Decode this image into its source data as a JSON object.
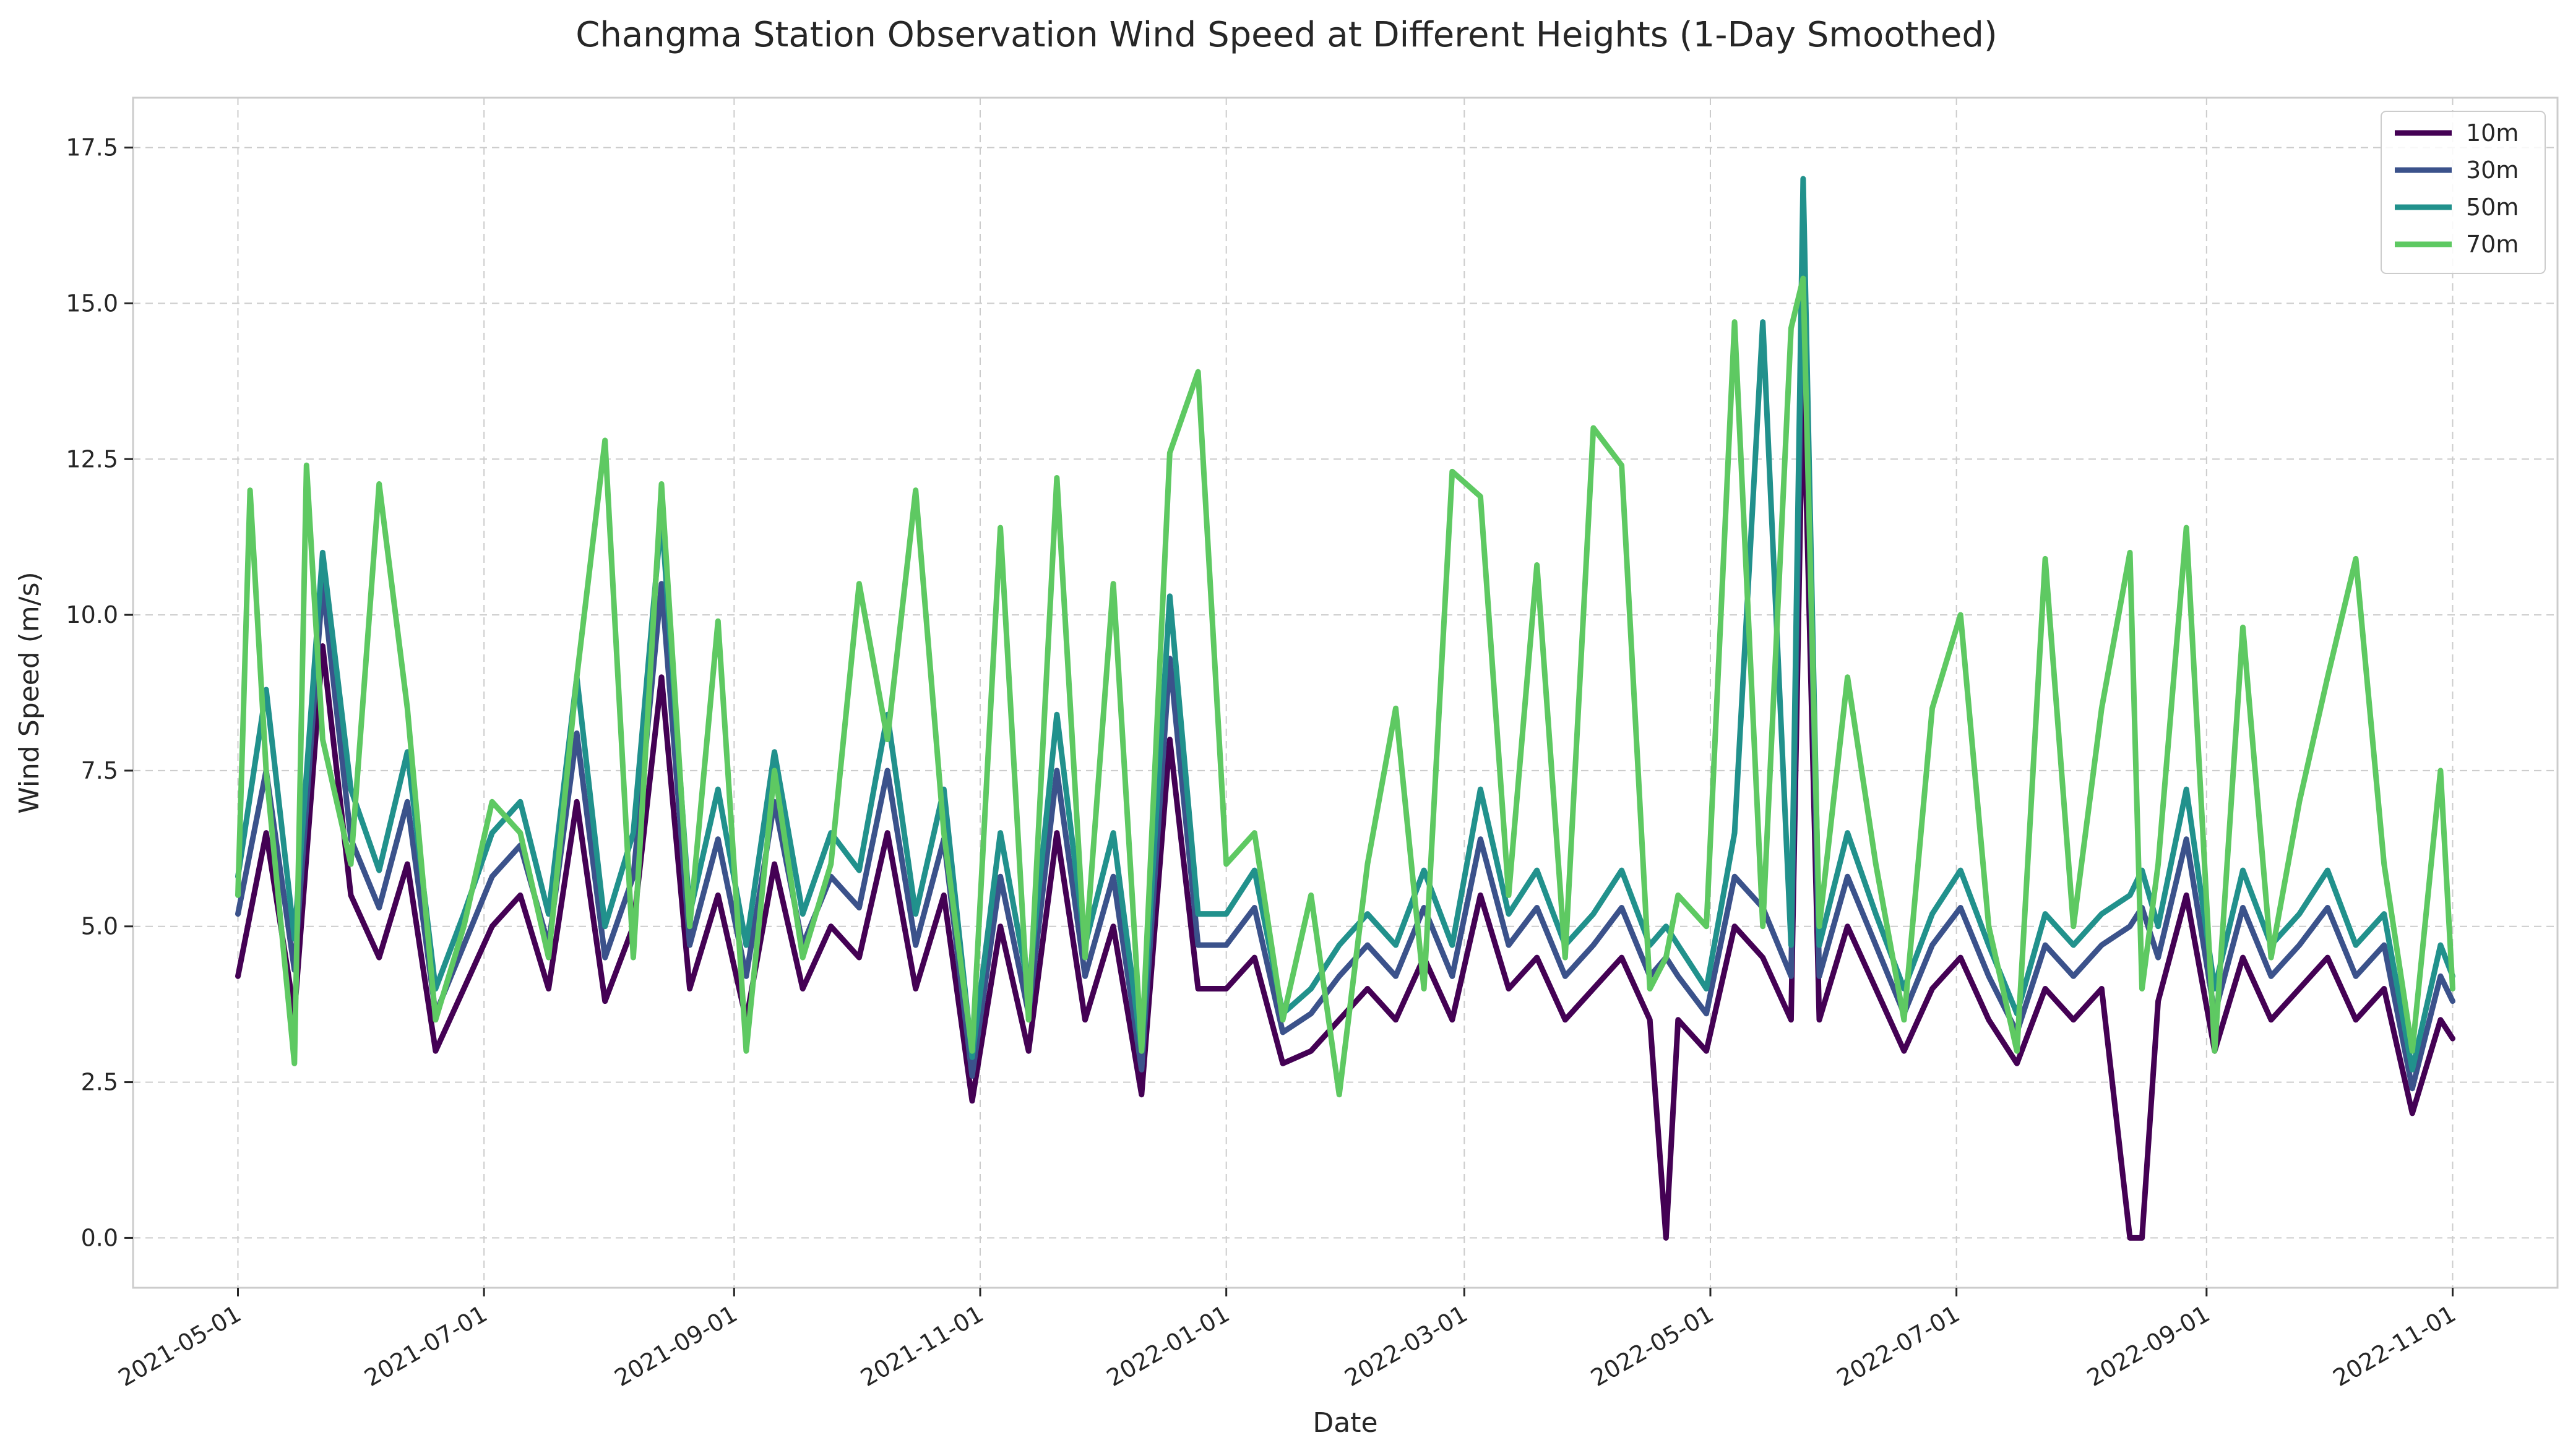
{
  "chart_data": {
    "type": "line",
    "title": "Changma Station Observation Wind Speed at Different Heights (1-Day Smoothed)",
    "xlabel": "Date",
    "ylabel": "Wind Speed (m/s)",
    "xlim": [
      "2021-04-05",
      "2022-11-27"
    ],
    "ylim": [
      -0.8,
      18.3
    ],
    "yticks": [
      0.0,
      2.5,
      5.0,
      7.5,
      10.0,
      12.5,
      15.0,
      17.5
    ],
    "ytick_labels": [
      "0.0",
      "2.5",
      "5.0",
      "7.5",
      "10.0",
      "12.5",
      "15.0",
      "17.5"
    ],
    "xticks": [
      "2021-05-01",
      "2021-07-01",
      "2021-09-01",
      "2021-11-01",
      "2022-01-01",
      "2022-03-01",
      "2022-05-01",
      "2022-07-01",
      "2022-09-01",
      "2022-11-01"
    ],
    "grid": true,
    "legend_position": "top-right",
    "series": [
      {
        "name": "10m",
        "color": "#440154",
        "x": [
          "2021-05-01",
          "2021-05-08",
          "2021-05-15",
          "2021-05-22",
          "2021-05-29",
          "2021-06-05",
          "2021-06-12",
          "2021-06-19",
          "2021-06-26",
          "2021-07-03",
          "2021-07-10",
          "2021-07-17",
          "2021-07-24",
          "2021-07-31",
          "2021-08-07",
          "2021-08-14",
          "2021-08-21",
          "2021-08-28",
          "2021-09-04",
          "2021-09-11",
          "2021-09-18",
          "2021-09-25",
          "2021-10-02",
          "2021-10-09",
          "2021-10-16",
          "2021-10-23",
          "2021-10-30",
          "2021-11-06",
          "2021-11-13",
          "2021-11-20",
          "2021-11-27",
          "2021-12-04",
          "2021-12-11",
          "2021-12-18",
          "2021-12-25",
          "2022-01-01",
          "2022-01-08",
          "2022-01-15",
          "2022-01-22",
          "2022-01-29",
          "2022-02-05",
          "2022-02-12",
          "2022-02-19",
          "2022-02-26",
          "2022-03-05",
          "2022-03-12",
          "2022-03-19",
          "2022-03-26",
          "2022-04-02",
          "2022-04-09",
          "2022-04-16",
          "2022-04-20",
          "2022-04-23",
          "2022-04-30",
          "2022-05-07",
          "2022-05-14",
          "2022-05-21",
          "2022-05-24",
          "2022-05-28",
          "2022-06-04",
          "2022-06-11",
          "2022-06-18",
          "2022-06-25",
          "2022-07-02",
          "2022-07-09",
          "2022-07-16",
          "2022-07-23",
          "2022-07-30",
          "2022-08-06",
          "2022-08-13",
          "2022-08-16",
          "2022-08-20",
          "2022-08-27",
          "2022-09-03",
          "2022-09-10",
          "2022-09-17",
          "2022-09-24",
          "2022-10-01",
          "2022-10-08",
          "2022-10-15",
          "2022-10-22",
          "2022-10-29",
          "2022-11-01"
        ],
        "values": [
          4.2,
          6.5,
          3.6,
          9.5,
          5.5,
          4.5,
          6.0,
          3.0,
          4.0,
          5.0,
          5.5,
          4.0,
          7.0,
          3.8,
          5.0,
          9.0,
          4.0,
          5.5,
          3.5,
          6.0,
          4.0,
          5.0,
          4.5,
          6.5,
          4.0,
          5.5,
          2.2,
          5.0,
          3.0,
          6.5,
          3.5,
          5.0,
          2.3,
          8.0,
          4.0,
          4.0,
          4.5,
          2.8,
          3.0,
          3.5,
          4.0,
          3.5,
          4.5,
          3.5,
          5.5,
          4.0,
          4.5,
          3.5,
          4.0,
          4.5,
          3.5,
          0.0,
          3.5,
          3.0,
          5.0,
          4.5,
          3.5,
          14.0,
          3.5,
          5.0,
          4.0,
          3.0,
          4.0,
          4.5,
          3.5,
          2.8,
          4.0,
          3.5,
          4.0,
          0.0,
          0.0,
          3.8,
          5.5,
          3.0,
          4.5,
          3.5,
          4.0,
          4.5,
          3.5,
          4.0,
          2.0,
          3.5,
          3.2
        ]
      },
      {
        "name": "30m",
        "color": "#3b528b",
        "x": [
          "2021-05-01",
          "2021-05-08",
          "2021-05-15",
          "2021-05-22",
          "2021-05-29",
          "2021-06-05",
          "2021-06-12",
          "2021-06-19",
          "2021-06-26",
          "2021-07-03",
          "2021-07-10",
          "2021-07-17",
          "2021-07-24",
          "2021-07-31",
          "2021-08-07",
          "2021-08-14",
          "2021-08-21",
          "2021-08-28",
          "2021-09-04",
          "2021-09-11",
          "2021-09-18",
          "2021-09-25",
          "2021-10-02",
          "2021-10-09",
          "2021-10-16",
          "2021-10-23",
          "2021-10-30",
          "2021-11-06",
          "2021-11-13",
          "2021-11-20",
          "2021-11-27",
          "2021-12-04",
          "2021-12-11",
          "2021-12-18",
          "2021-12-25",
          "2022-01-01",
          "2022-01-08",
          "2022-01-15",
          "2022-01-22",
          "2022-01-29",
          "2022-02-05",
          "2022-02-12",
          "2022-02-19",
          "2022-02-26",
          "2022-03-05",
          "2022-03-12",
          "2022-03-19",
          "2022-03-26",
          "2022-04-02",
          "2022-04-09",
          "2022-04-16",
          "2022-04-20",
          "2022-04-23",
          "2022-04-30",
          "2022-05-07",
          "2022-05-14",
          "2022-05-21",
          "2022-05-24",
          "2022-05-28",
          "2022-06-04",
          "2022-06-11",
          "2022-06-18",
          "2022-06-25",
          "2022-07-02",
          "2022-07-09",
          "2022-07-16",
          "2022-07-23",
          "2022-07-30",
          "2022-08-06",
          "2022-08-13",
          "2022-08-16",
          "2022-08-20",
          "2022-08-27",
          "2022-09-03",
          "2022-09-10",
          "2022-09-17",
          "2022-09-24",
          "2022-10-01",
          "2022-10-08",
          "2022-10-15",
          "2022-10-22",
          "2022-10-29",
          "2022-11-01"
        ],
        "values": [
          5.2,
          7.5,
          4.3,
          10.5,
          6.4,
          5.3,
          7.0,
          3.6,
          4.7,
          5.8,
          6.3,
          4.7,
          8.1,
          4.5,
          5.8,
          10.5,
          4.7,
          6.4,
          4.2,
          7.0,
          4.7,
          5.8,
          5.3,
          7.5,
          4.7,
          6.4,
          2.6,
          5.8,
          3.6,
          7.5,
          4.2,
          5.8,
          2.7,
          9.3,
          4.7,
          4.7,
          5.3,
          3.3,
          3.6,
          4.2,
          4.7,
          4.2,
          5.3,
          4.2,
          6.4,
          4.7,
          5.3,
          4.2,
          4.7,
          5.3,
          4.2,
          4.5,
          4.2,
          3.6,
          5.8,
          5.3,
          4.2,
          16.0,
          4.2,
          5.8,
          4.7,
          3.6,
          4.7,
          5.3,
          4.2,
          3.3,
          4.7,
          4.2,
          4.7,
          5.0,
          5.3,
          4.5,
          6.4,
          3.6,
          5.3,
          4.2,
          4.7,
          5.3,
          4.2,
          4.7,
          2.4,
          4.2,
          3.8
        ]
      },
      {
        "name": "50m",
        "color": "#21918c",
        "x": [
          "2021-05-01",
          "2021-05-08",
          "2021-05-15",
          "2021-05-22",
          "2021-05-29",
          "2021-06-05",
          "2021-06-12",
          "2021-06-19",
          "2021-06-26",
          "2021-07-03",
          "2021-07-10",
          "2021-07-17",
          "2021-07-24",
          "2021-07-31",
          "2021-08-07",
          "2021-08-14",
          "2021-08-21",
          "2021-08-28",
          "2021-09-04",
          "2021-09-11",
          "2021-09-18",
          "2021-09-25",
          "2021-10-02",
          "2021-10-09",
          "2021-10-16",
          "2021-10-23",
          "2021-10-30",
          "2021-11-06",
          "2021-11-13",
          "2021-11-20",
          "2021-11-27",
          "2021-12-04",
          "2021-12-11",
          "2021-12-18",
          "2021-12-25",
          "2022-01-01",
          "2022-01-08",
          "2022-01-15",
          "2022-01-22",
          "2022-01-29",
          "2022-02-05",
          "2022-02-12",
          "2022-02-19",
          "2022-02-26",
          "2022-03-05",
          "2022-03-12",
          "2022-03-19",
          "2022-03-26",
          "2022-04-02",
          "2022-04-09",
          "2022-04-16",
          "2022-04-20",
          "2022-04-23",
          "2022-04-30",
          "2022-05-07",
          "2022-05-14",
          "2022-05-21",
          "2022-05-24",
          "2022-05-28",
          "2022-06-04",
          "2022-06-11",
          "2022-06-18",
          "2022-06-25",
          "2022-07-02",
          "2022-07-09",
          "2022-07-16",
          "2022-07-23",
          "2022-07-30",
          "2022-08-06",
          "2022-08-13",
          "2022-08-16",
          "2022-08-20",
          "2022-08-27",
          "2022-09-03",
          "2022-09-10",
          "2022-09-17",
          "2022-09-24",
          "2022-10-01",
          "2022-10-08",
          "2022-10-15",
          "2022-10-22",
          "2022-10-29",
          "2022-11-01"
        ],
        "values": [
          5.8,
          8.8,
          4.8,
          11.0,
          7.2,
          5.9,
          7.8,
          4.0,
          5.2,
          6.5,
          7.0,
          5.2,
          9.0,
          5.0,
          6.5,
          11.6,
          5.2,
          7.2,
          4.7,
          7.8,
          5.2,
          6.5,
          5.9,
          8.4,
          5.2,
          7.2,
          2.9,
          6.5,
          4.0,
          8.4,
          4.7,
          6.5,
          3.0,
          10.3,
          5.2,
          5.2,
          5.9,
          3.6,
          4.0,
          4.7,
          5.2,
          4.7,
          5.9,
          4.7,
          7.2,
          5.2,
          5.9,
          4.7,
          5.2,
          5.9,
          4.7,
          5.0,
          4.7,
          4.0,
          6.5,
          14.7,
          4.7,
          17.0,
          4.7,
          6.5,
          5.2,
          4.0,
          5.2,
          5.9,
          4.7,
          3.6,
          5.2,
          4.7,
          5.2,
          5.5,
          5.9,
          5.0,
          7.2,
          4.0,
          5.9,
          4.7,
          5.2,
          5.9,
          4.7,
          5.2,
          2.7,
          4.7,
          4.2
        ]
      },
      {
        "name": "70m",
        "color": "#5ec962",
        "x": [
          "2021-05-01",
          "2021-05-04",
          "2021-05-08",
          "2021-05-15",
          "2021-05-18",
          "2021-05-22",
          "2021-05-29",
          "2021-06-05",
          "2021-06-12",
          "2021-06-19",
          "2021-06-26",
          "2021-07-03",
          "2021-07-10",
          "2021-07-17",
          "2021-07-24",
          "2021-07-31",
          "2021-08-07",
          "2021-08-14",
          "2021-08-21",
          "2021-08-28",
          "2021-09-04",
          "2021-09-11",
          "2021-09-18",
          "2021-09-25",
          "2021-10-02",
          "2021-10-09",
          "2021-10-16",
          "2021-10-23",
          "2021-10-30",
          "2021-11-06",
          "2021-11-13",
          "2021-11-20",
          "2021-11-27",
          "2021-12-04",
          "2021-12-11",
          "2021-12-18",
          "2021-12-25",
          "2022-01-01",
          "2022-01-08",
          "2022-01-15",
          "2022-01-22",
          "2022-01-29",
          "2022-02-05",
          "2022-02-12",
          "2022-02-19",
          "2022-02-26",
          "2022-03-05",
          "2022-03-12",
          "2022-03-19",
          "2022-03-26",
          "2022-04-02",
          "2022-04-09",
          "2022-04-16",
          "2022-04-20",
          "2022-04-23",
          "2022-04-30",
          "2022-05-07",
          "2022-05-14",
          "2022-05-21",
          "2022-05-24",
          "2022-05-28",
          "2022-06-04",
          "2022-06-11",
          "2022-06-18",
          "2022-06-25",
          "2022-07-02",
          "2022-07-09",
          "2022-07-16",
          "2022-07-23",
          "2022-07-30",
          "2022-08-06",
          "2022-08-13",
          "2022-08-16",
          "2022-08-20",
          "2022-08-27",
          "2022-09-03",
          "2022-09-10",
          "2022-09-17",
          "2022-09-24",
          "2022-10-01",
          "2022-10-08",
          "2022-10-15",
          "2022-10-22",
          "2022-10-29",
          "2022-11-01"
        ],
        "values": [
          5.5,
          12.0,
          7.5,
          2.8,
          12.4,
          8.0,
          6.0,
          12.1,
          8.5,
          3.5,
          5.0,
          7.0,
          6.5,
          4.5,
          9.0,
          12.8,
          4.5,
          12.1,
          5.0,
          9.9,
          3.0,
          7.5,
          4.5,
          6.0,
          10.5,
          8.0,
          12.0,
          6.5,
          3.0,
          11.4,
          3.5,
          12.2,
          4.5,
          10.5,
          3.0,
          12.6,
          13.9,
          6.0,
          6.5,
          3.5,
          5.5,
          2.3,
          6.0,
          8.5,
          4.0,
          12.3,
          11.9,
          5.5,
          10.8,
          4.5,
          13.0,
          12.4,
          4.0,
          4.5,
          5.5,
          5.0,
          14.7,
          5.0,
          14.6,
          15.4,
          5.0,
          9.0,
          6.0,
          3.5,
          8.5,
          10.0,
          5.0,
          3.0,
          10.9,
          5.0,
          8.5,
          11.0,
          4.0,
          6.0,
          11.4,
          3.0,
          9.8,
          4.5,
          7.0,
          9.0,
          10.9,
          6.0,
          3.0,
          7.5,
          4.0
        ]
      }
    ]
  }
}
